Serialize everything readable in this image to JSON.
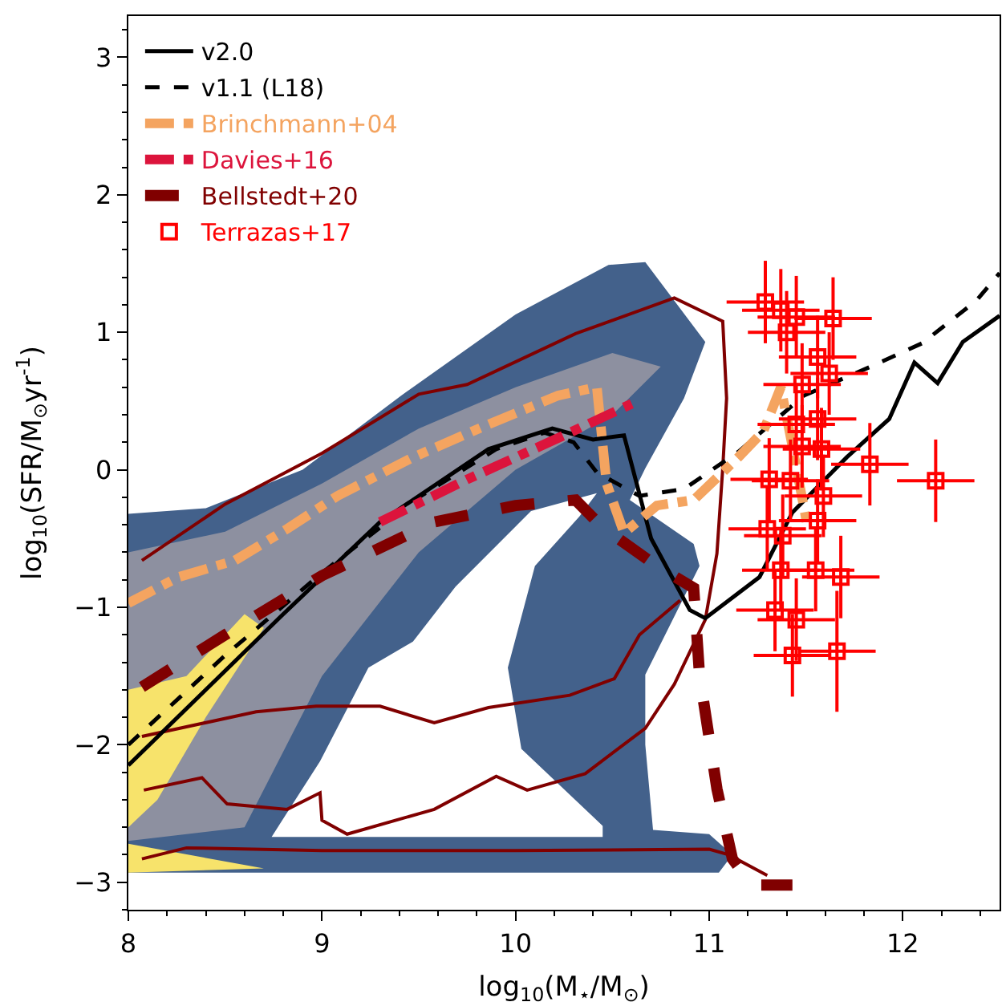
{
  "chart_data": {
    "type": "line",
    "xlabel": "log$_{10}$(M$_{⋆}$/M$_{⊙}$)",
    "ylabel": "log$_{10}$(SFR/M$_{⊙}$yr$^{-1}$)",
    "xlim": [
      8,
      12.5
    ],
    "xticks": [
      8,
      9,
      10,
      11,
      12
    ],
    "ylim": [
      -3.2,
      3.3
    ],
    "yticks": [
      -3,
      -2,
      -1,
      0,
      1,
      2,
      3
    ],
    "legend": "top left",
    "series": [
      {
        "type": "area",
        "color": "#43618b",
        "x": [
          8,
          8.4,
          8.9,
          9.41,
          10.0,
          10.48,
          10.67,
          10.98,
          10.87,
          10.67,
          10.59,
          10.92,
          10.95,
          10.67,
          10.67,
          10.71,
          11.0,
          11.12,
          11.05,
          10.45,
          10.45,
          10.45,
          10.03,
          9.96,
          10.1,
          10.33,
          10.42,
          10.08,
          9.69,
          9.47,
          9.24,
          8.99,
          8.74,
          10.45,
          10.45,
          8.0
        ],
        "values": [
          -0.32,
          -0.28,
          0.0,
          0.54,
          1.13,
          1.49,
          1.51,
          0.93,
          0.52,
          0.01,
          -0.22,
          -0.54,
          -0.7,
          -1.49,
          -2.0,
          -2.62,
          -2.65,
          -2.8,
          -2.93,
          -2.93,
          -2.67,
          -2.59,
          -2.03,
          -1.44,
          -0.7,
          -0.34,
          -0.17,
          -0.3,
          -0.85,
          -1.25,
          -1.44,
          -2.12,
          -2.67,
          -2.67,
          -2.93,
          -2.93
        ]
      },
      {
        "type": "area",
        "color": "#8d90a0",
        "x": [
          8,
          8.5,
          9.0,
          9.5,
          10.0,
          10.5,
          10.75,
          10.5,
          10.0,
          9.5,
          9.0,
          8.6,
          8.0
        ],
        "values": [
          -0.6,
          -0.45,
          -0.1,
          0.3,
          0.6,
          0.85,
          0.75,
          0.4,
          0.0,
          -0.6,
          -1.5,
          -2.6,
          -2.7
        ]
      },
      {
        "type": "area",
        "color": "#f7e36b",
        "x": [
          8,
          8.3,
          8.6,
          8.7,
          8.4,
          8.15,
          8.0,
          null,
          8.0,
          8.7,
          8.0
        ],
        "values": [
          -1.6,
          -1.5,
          -1.05,
          -1.15,
          -1.8,
          -2.4,
          -2.6,
          null,
          -2.72,
          -2.9,
          -2.93
        ]
      },
      {
        "color": "#800000",
        "line_style": "solid",
        "x": [
          8.07,
          8.5,
          9.0,
          9.5,
          9.75,
          10.31,
          10.82,
          11.07,
          11.09,
          11.07,
          11.04,
          10.98,
          10.82,
          10.67,
          10.36,
          10.06,
          9.9,
          9.58,
          9.13,
          9.0,
          8.99,
          8.82,
          8.51,
          8.38,
          8.08
        ],
        "values": [
          -0.66,
          -0.25,
          0.12,
          0.55,
          0.62,
          0.99,
          1.25,
          1.08,
          0.52,
          0.01,
          -0.61,
          -1.09,
          -1.56,
          -1.88,
          -2.21,
          -2.33,
          -2.23,
          -2.47,
          -2.65,
          -2.55,
          -2.35,
          -2.47,
          -2.43,
          -2.24,
          -2.33
        ]
      },
      {
        "color": "#800000",
        "line_style": "solid",
        "x": [
          8.07,
          8.66,
          8.97,
          9.3,
          9.58,
          9.86,
          10.28,
          10.51,
          10.64,
          10.85
        ],
        "values": [
          -1.94,
          -1.76,
          -1.72,
          -1.72,
          -1.84,
          -1.73,
          -1.64,
          -1.52,
          -1.2,
          -0.95
        ]
      },
      {
        "color": "#800000",
        "line_style": "solid",
        "x": [
          8.07,
          8.3,
          9.0,
          10.0,
          11.0,
          11.1,
          11.3
        ],
        "values": [
          -2.83,
          -2.75,
          -2.77,
          -2.77,
          -2.76,
          -2.8,
          -2.95
        ]
      },
      {
        "name": "v2.0",
        "color": "#000000",
        "line_style": "solid",
        "x": [
          8,
          8.4,
          8.8,
          9.3,
          9.86,
          10.19,
          10.4,
          10.56,
          10.7,
          10.9,
          10.98,
          11.26,
          11.43,
          11.71,
          11.93,
          12.06,
          12.18,
          12.31,
          12.5
        ],
        "values": [
          -2.15,
          -1.6,
          -1.05,
          -0.38,
          0.15,
          0.3,
          0.22,
          0.25,
          -0.5,
          -1.02,
          -1.08,
          -0.78,
          -0.31,
          0.09,
          0.37,
          0.78,
          0.63,
          0.93,
          1.12
        ]
      },
      {
        "name": "v1.1 (L18)",
        "color": "#000000",
        "line_style": "dashed",
        "x": [
          8,
          8.5,
          9.0,
          9.5,
          9.9,
          10.15,
          10.3,
          10.42,
          10.64,
          10.87,
          11.15,
          11.49,
          11.85,
          12.1,
          12.38,
          12.5
        ],
        "values": [
          -2.0,
          -1.35,
          -0.75,
          -0.2,
          0.15,
          0.27,
          0.2,
          -0.02,
          -0.19,
          -0.14,
          0.13,
          0.54,
          0.76,
          0.92,
          1.23,
          1.43
        ]
      },
      {
        "name": "Brinchmann+04",
        "color": "#f4a460",
        "line_style": "dashdot",
        "x": [
          8.0,
          8.26,
          8.55,
          8.82,
          9.08,
          9.47,
          9.86,
          10.22,
          10.42,
          10.47,
          10.56,
          10.73,
          10.92,
          11.15,
          11.28,
          11.37,
          11.43,
          11.51
        ],
        "values": [
          -0.97,
          -0.78,
          -0.66,
          -0.43,
          -0.19,
          0.09,
          0.33,
          0.54,
          0.6,
          -0.1,
          -0.46,
          -0.26,
          -0.22,
          0.09,
          0.28,
          0.6,
          0.17,
          -0.43
        ]
      },
      {
        "name": "Davies+16",
        "color": "#dc143c",
        "line_style": "dashdot",
        "x": [
          9.3,
          9.75,
          10.25,
          10.6
        ],
        "values": [
          -0.38,
          -0.07,
          0.25,
          0.48
        ]
      },
      {
        "name": "Bellstedt+20",
        "color": "#800000",
        "line_style": "dashed",
        "x": [
          8.07,
          8.5,
          9.0,
          9.58,
          10.0,
          10.31,
          10.45,
          10.73,
          10.92,
          10.95,
          11.04,
          11.12,
          11.22,
          11.43
        ],
        "values": [
          -1.58,
          -1.2,
          -0.77,
          -0.38,
          -0.26,
          -0.22,
          -0.42,
          -0.7,
          -0.86,
          -1.49,
          -2.32,
          -2.83,
          -3.02,
          -3.02
        ]
      },
      {
        "type": "scatter",
        "name": "Terrazas+17",
        "color": "#ff0000",
        "marker": "square",
        "x": [
          11.29,
          11.37,
          11.45,
          11.64,
          11.4,
          11.56,
          11.48,
          11.62,
          11.56,
          11.45,
          11.48,
          11.58,
          11.31,
          11.42,
          11.59,
          11.56,
          11.3,
          11.38,
          11.37,
          11.55,
          11.68,
          11.34,
          11.45,
          11.43,
          11.66,
          11.83,
          12.17
        ],
        "values": [
          1.22,
          1.16,
          1.11,
          1.1,
          1.0,
          0.82,
          0.62,
          0.7,
          0.37,
          0.33,
          0.17,
          0.15,
          -0.07,
          -0.08,
          -0.19,
          -0.37,
          -0.43,
          -0.48,
          -0.73,
          -0.73,
          -0.78,
          -1.02,
          -1.09,
          -1.35,
          -1.32,
          0.04,
          -0.08
        ],
        "errors": [
          0.3,
          0.3,
          0.3,
          0.3,
          0.3,
          0.3,
          0.3,
          0.3,
          0.3,
          0.3,
          0.3,
          0.3,
          0.3,
          0.3,
          0.3,
          0.3,
          0.3,
          0.3,
          0.3,
          0.3,
          0.3,
          0.3,
          0.3,
          0.3,
          0.44,
          0.3,
          0.3
        ],
        "xerrors": [
          0.2,
          0.2,
          0.2,
          0.2,
          0.2,
          0.2,
          0.2,
          0.2,
          0.2,
          0.2,
          0.2,
          0.2,
          0.2,
          0.2,
          0.2,
          0.2,
          0.2,
          0.2,
          0.2,
          0.2,
          0.2,
          0.2,
          0.2,
          0.2,
          0.2,
          0.2,
          0.2
        ]
      }
    ]
  }
}
